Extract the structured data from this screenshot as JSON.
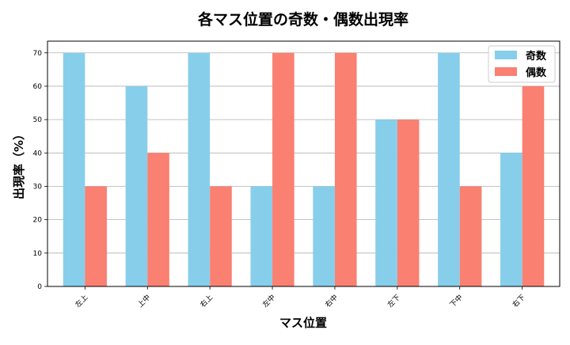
{
  "chart_data": {
    "type": "bar",
    "title": "各マス位置の奇数・偶数出現率",
    "xlabel": "マス位置",
    "ylabel": "出現率（%）",
    "categories": [
      "左上",
      "上中",
      "右上",
      "左中",
      "右中",
      "左下",
      "下中",
      "右下"
    ],
    "series": [
      {
        "name": "奇数",
        "color": "#87ceeb",
        "values": [
          70,
          60,
          70,
          30,
          30,
          50,
          70,
          40
        ]
      },
      {
        "name": "偶数",
        "color": "#fa8072",
        "values": [
          30,
          40,
          30,
          70,
          70,
          50,
          30,
          60
        ]
      }
    ],
    "ylim": [
      0,
      73.5
    ],
    "yticks": [
      0,
      10,
      20,
      30,
      40,
      50,
      60,
      70
    ],
    "grid": "horizontal",
    "legend_position": "top-right",
    "grid_color": "#b0b0b0"
  }
}
